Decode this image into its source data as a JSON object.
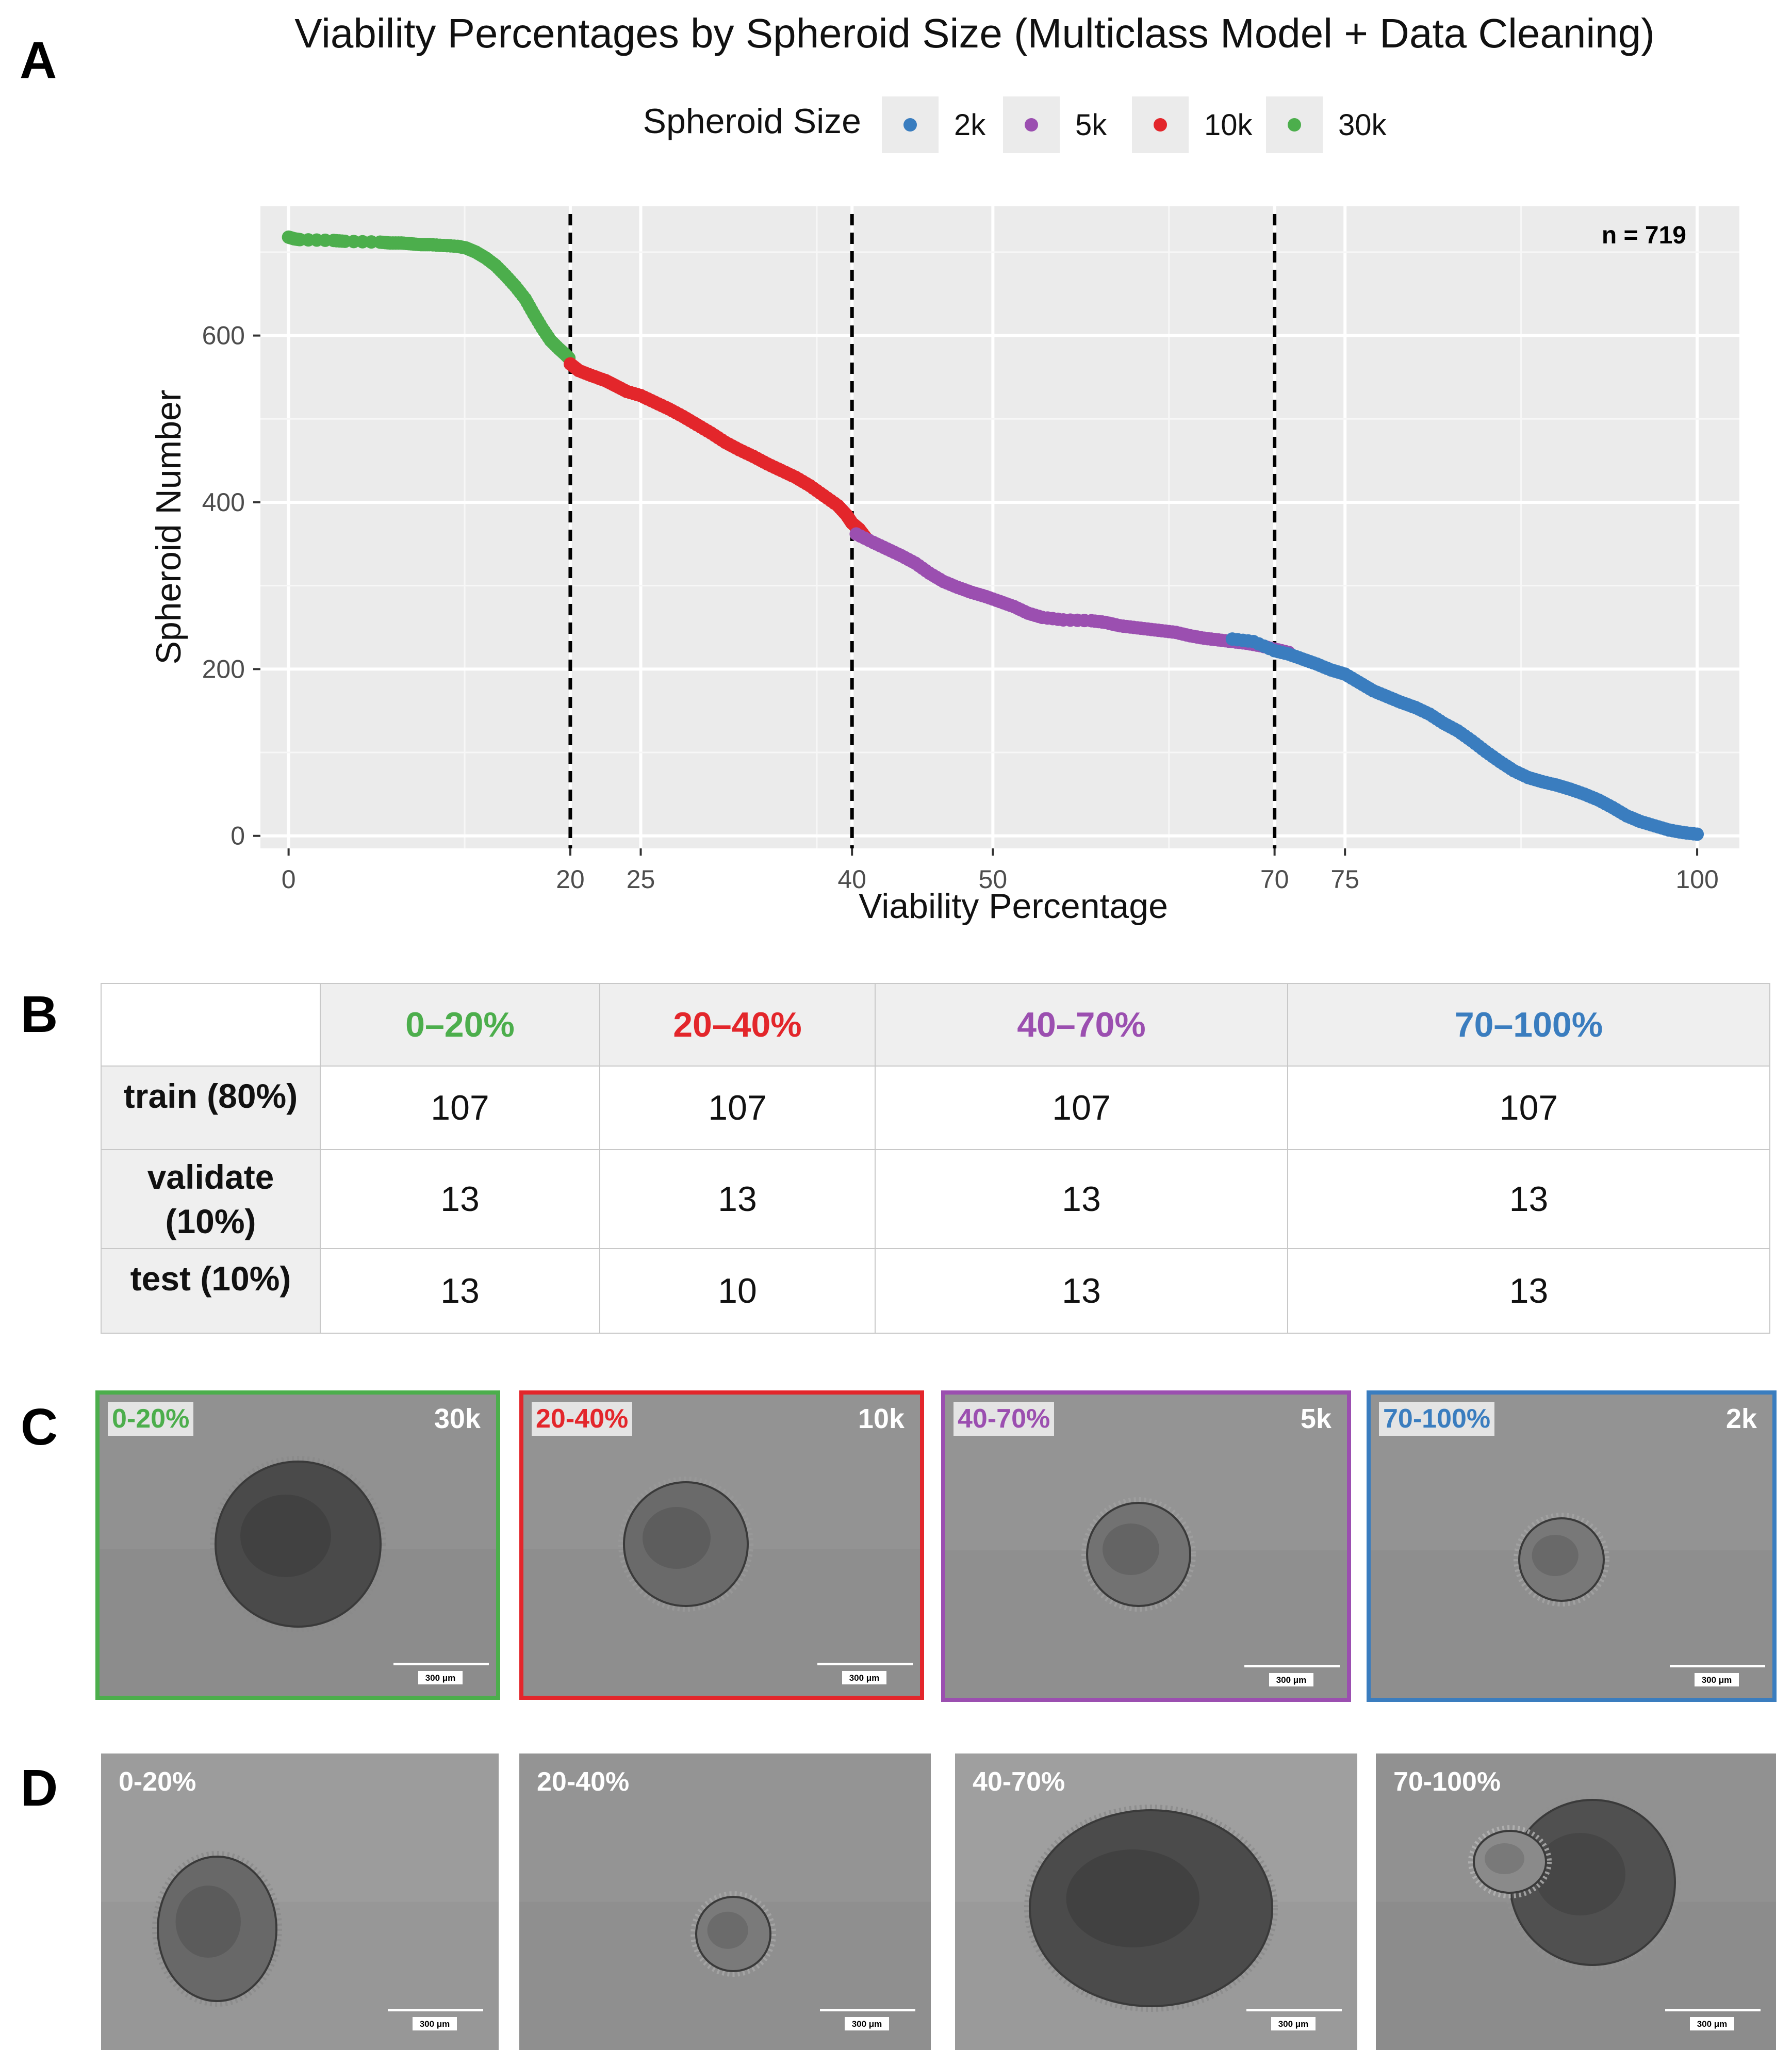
{
  "panels": {
    "a": "A",
    "b": "B",
    "c": "C",
    "d": "D"
  },
  "colors": {
    "2k": "#3a7dbf",
    "5k": "#9b4fb0",
    "10k": "#e3262b",
    "30k": "#4cae4c"
  },
  "chart_data": {
    "type": "scatter",
    "title": "Viability Percentages by Spheroid Size (Multiclass Model + Data Cleaning)",
    "xlabel": "Viability Percentage",
    "ylabel": "Spheroid Number",
    "xlim": [
      -2,
      103
    ],
    "ylim": [
      -15,
      755
    ],
    "x_ticks": [
      0,
      20,
      25,
      40,
      50,
      70,
      75,
      100
    ],
    "y_ticks": [
      0,
      200,
      400,
      600
    ],
    "x_minor_gridlines": [
      12.5,
      37.5,
      62.5,
      87.5
    ],
    "vlines": [
      20,
      40,
      70
    ],
    "annotation": "n = 719",
    "grid": true,
    "legend": {
      "title": "Spheroid Size",
      "position": "top",
      "entries": [
        "2k",
        "5k",
        "10k",
        "30k"
      ]
    },
    "series": [
      {
        "name": "30k",
        "points": [
          [
            0,
            718
          ],
          [
            0.4,
            716
          ],
          [
            0.8,
            715
          ],
          [
            3.2,
            714
          ],
          [
            4,
            713
          ],
          [
            6.5,
            712
          ],
          [
            7.2,
            711
          ],
          [
            8,
            711
          ],
          [
            8.7,
            710
          ],
          [
            9.4,
            709
          ],
          [
            10,
            709
          ],
          [
            11,
            708
          ],
          [
            12,
            707
          ],
          [
            12.6,
            705
          ],
          [
            13.3,
            700
          ],
          [
            14,
            693
          ],
          [
            14.7,
            684
          ],
          [
            15.4,
            672
          ],
          [
            16.1,
            659
          ],
          [
            16.8,
            644
          ],
          [
            17.4,
            626
          ],
          [
            18,
            609
          ],
          [
            18.6,
            594
          ],
          [
            19.2,
            584
          ],
          [
            19.6,
            578
          ],
          [
            19.9,
            573
          ]
        ]
      },
      {
        "name": "10k",
        "points": [
          [
            20,
            566
          ],
          [
            20.6,
            558
          ],
          [
            21.5,
            552
          ],
          [
            22.5,
            546
          ],
          [
            23.2,
            540
          ],
          [
            24,
            533
          ],
          [
            25,
            528
          ],
          [
            26,
            520
          ],
          [
            27,
            512
          ],
          [
            28,
            503
          ],
          [
            29,
            493
          ],
          [
            30,
            483
          ],
          [
            31,
            472
          ],
          [
            32,
            463
          ],
          [
            33,
            455
          ],
          [
            34,
            446
          ],
          [
            35,
            438
          ],
          [
            36,
            430
          ],
          [
            37,
            420
          ],
          [
            38,
            408
          ],
          [
            39,
            396
          ],
          [
            39.6,
            385
          ],
          [
            40,
            375
          ],
          [
            40.5,
            368
          ],
          [
            41,
            357
          ]
        ]
      },
      {
        "name": "5k",
        "points": [
          [
            40.3,
            362
          ],
          [
            41.5,
            352
          ],
          [
            42.5,
            344
          ],
          [
            43.5,
            336
          ],
          [
            44.5,
            327
          ],
          [
            45.5,
            315
          ],
          [
            46.5,
            305
          ],
          [
            47.5,
            298
          ],
          [
            48.5,
            292
          ],
          [
            49.5,
            287
          ],
          [
            50.5,
            281
          ],
          [
            51.5,
            275
          ],
          [
            52.5,
            267
          ],
          [
            53.5,
            262
          ],
          [
            55,
            259
          ],
          [
            57,
            258
          ],
          [
            58,
            256
          ],
          [
            59,
            252
          ],
          [
            60,
            250
          ],
          [
            61,
            248
          ],
          [
            62,
            246
          ],
          [
            63,
            244
          ],
          [
            64,
            240
          ],
          [
            65,
            237
          ],
          [
            66,
            235
          ],
          [
            67,
            233
          ],
          [
            68,
            231
          ],
          [
            69,
            228
          ],
          [
            70,
            224
          ],
          [
            71,
            220
          ]
        ]
      },
      {
        "name": "2k",
        "points": [
          [
            67,
            236
          ],
          [
            68.5,
            233
          ],
          [
            70,
            222
          ],
          [
            71,
            218
          ],
          [
            72,
            212
          ],
          [
            73,
            206
          ],
          [
            74,
            199
          ],
          [
            75,
            194
          ],
          [
            76,
            184
          ],
          [
            77,
            174
          ],
          [
            78,
            167
          ],
          [
            79,
            160
          ],
          [
            80,
            154
          ],
          [
            81,
            146
          ],
          [
            82,
            135
          ],
          [
            83,
            126
          ],
          [
            84,
            114
          ],
          [
            85,
            101
          ],
          [
            86,
            89
          ],
          [
            87,
            78
          ],
          [
            88,
            70
          ],
          [
            89,
            65
          ],
          [
            90,
            61
          ],
          [
            91,
            56
          ],
          [
            92,
            50
          ],
          [
            93,
            43
          ],
          [
            94,
            34
          ],
          [
            95,
            24
          ],
          [
            96,
            17
          ],
          [
            97,
            12
          ],
          [
            98,
            7
          ],
          [
            99,
            4
          ],
          [
            100,
            2
          ]
        ]
      }
    ]
  },
  "table": {
    "headers": [
      "",
      "0–20%",
      "20–40%",
      "40–70%",
      "70–100%"
    ],
    "header_colors": [
      "#000000",
      "#4cae4c",
      "#e3262b",
      "#9b4fb0",
      "#3a7dbf"
    ],
    "rows": [
      {
        "label": "train (80%)",
        "values": [
          "107",
          "107",
          "107",
          "107"
        ]
      },
      {
        "label": "validate (10%)",
        "values": [
          "13",
          "13",
          "13",
          "13"
        ]
      },
      {
        "label": "test (10%)",
        "values": [
          "13",
          "10",
          "13",
          "13"
        ]
      }
    ]
  },
  "panel_c": [
    {
      "range": "0-20%",
      "size": "30k",
      "scale": "300 μm",
      "color": "#4cae4c"
    },
    {
      "range": "20-40%",
      "size": "10k",
      "scale": "300 μm",
      "color": "#e3262b"
    },
    {
      "range": "40-70%",
      "size": "5k",
      "scale": "300 μm",
      "color": "#9b4fb0"
    },
    {
      "range": "70-100%",
      "size": "2k",
      "scale": "300 μm",
      "color": "#3a7dbf"
    }
  ],
  "panel_d": [
    {
      "range": "0-20%",
      "scale": "300 μm"
    },
    {
      "range": "20-40%",
      "scale": "300 μm"
    },
    {
      "range": "40-70%",
      "scale": "300 μm"
    },
    {
      "range": "70-100%",
      "scale": "300 μm"
    }
  ]
}
